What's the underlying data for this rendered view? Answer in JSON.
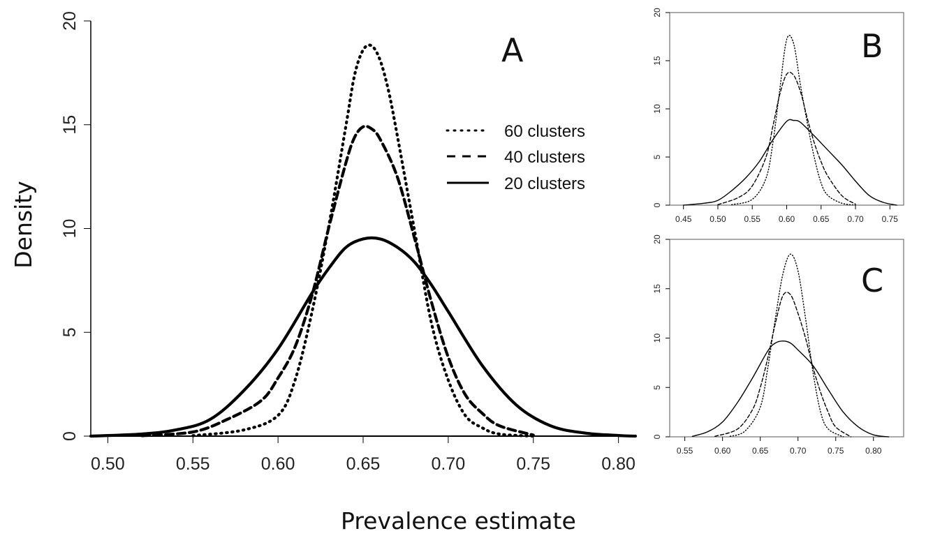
{
  "chart_data": [
    {
      "panel": "A",
      "type": "line",
      "xlabel": "Prevalence estimate",
      "ylabel": "Density",
      "xlim": [
        0.49,
        0.81
      ],
      "ylim": [
        0,
        20
      ],
      "xticks": [
        "0.50",
        "0.55",
        "0.60",
        "0.65",
        "0.70",
        "0.75",
        "0.80"
      ],
      "yticks": [
        "0",
        "5",
        "10",
        "15",
        "20"
      ],
      "legend": {
        "position": "top-right",
        "entries": [
          "60 clusters",
          "40 clusters",
          "20 clusters"
        ]
      },
      "series": [
        {
          "name": "60 clusters",
          "style": "dotted",
          "x": [
            0.55,
            0.58,
            0.6,
            0.61,
            0.62,
            0.63,
            0.64,
            0.645,
            0.65,
            0.655,
            0.66,
            0.665,
            0.67,
            0.68,
            0.69,
            0.7,
            0.71,
            0.72,
            0.73,
            0.75
          ],
          "y": [
            0.02,
            0.3,
            1.0,
            2.7,
            6.0,
            10.2,
            15.0,
            17.4,
            18.6,
            18.8,
            18.1,
            16.6,
            14.5,
            10.0,
            5.5,
            2.7,
            1.0,
            0.4,
            0.1,
            0.0
          ]
        },
        {
          "name": "40 clusters",
          "style": "dashed",
          "x": [
            0.52,
            0.55,
            0.57,
            0.59,
            0.6,
            0.61,
            0.62,
            0.63,
            0.64,
            0.645,
            0.65,
            0.655,
            0.66,
            0.67,
            0.68,
            0.69,
            0.7,
            0.71,
            0.72,
            0.73,
            0.75
          ],
          "y": [
            0.02,
            0.2,
            0.8,
            1.7,
            2.8,
            4.3,
            6.8,
            10.1,
            13.2,
            14.4,
            14.9,
            14.8,
            14.3,
            12.5,
            9.6,
            6.5,
            3.8,
            2.0,
            1.1,
            0.5,
            0.05
          ]
        },
        {
          "name": "20 clusters",
          "style": "solid",
          "x": [
            0.49,
            0.52,
            0.54,
            0.56,
            0.58,
            0.6,
            0.62,
            0.63,
            0.64,
            0.65,
            0.66,
            0.67,
            0.68,
            0.69,
            0.7,
            0.72,
            0.74,
            0.76,
            0.78,
            0.8,
            0.81
          ],
          "y": [
            0.0,
            0.1,
            0.3,
            0.8,
            2.2,
            4.2,
            6.9,
            8.1,
            9.1,
            9.5,
            9.5,
            9.1,
            8.4,
            7.3,
            6.0,
            3.4,
            1.5,
            0.5,
            0.15,
            0.03,
            0.0
          ]
        }
      ]
    },
    {
      "panel": "B",
      "type": "line",
      "xlim": [
        0.43,
        0.77
      ],
      "ylim": [
        0,
        20
      ],
      "xticks": [
        "0.45",
        "0.50",
        "0.55",
        "0.60",
        "0.65",
        "0.70",
        "0.75"
      ],
      "yticks": [
        "0",
        "5",
        "10",
        "15",
        "20"
      ],
      "series": [
        {
          "name": "60 clusters",
          "style": "dotted",
          "x": [
            0.52,
            0.55,
            0.57,
            0.58,
            0.59,
            0.6,
            0.61,
            0.62,
            0.63,
            0.64,
            0.65,
            0.66,
            0.68,
            0.7
          ],
          "y": [
            0.05,
            0.6,
            2.8,
            6.5,
            12.0,
            17.2,
            16.8,
            12.5,
            8.5,
            5.0,
            2.3,
            1.0,
            0.2,
            0.0
          ]
        },
        {
          "name": "40 clusters",
          "style": "dashed",
          "x": [
            0.5,
            0.53,
            0.55,
            0.57,
            0.58,
            0.59,
            0.6,
            0.61,
            0.62,
            0.63,
            0.64,
            0.65,
            0.66,
            0.68,
            0.7
          ],
          "y": [
            0.05,
            0.8,
            2.0,
            5.0,
            8.2,
            11.5,
            13.6,
            13.5,
            11.8,
            9.0,
            6.5,
            4.5,
            3.0,
            1.0,
            0.1
          ]
        },
        {
          "name": "20 clusters",
          "style": "solid",
          "x": [
            0.45,
            0.48,
            0.5,
            0.52,
            0.54,
            0.56,
            0.58,
            0.6,
            0.61,
            0.62,
            0.64,
            0.66,
            0.68,
            0.7,
            0.72,
            0.74,
            0.76
          ],
          "y": [
            0.0,
            0.2,
            0.5,
            1.5,
            2.8,
            4.5,
            6.8,
            8.7,
            8.8,
            8.6,
            7.2,
            5.7,
            4.2,
            2.5,
            1.0,
            0.3,
            0.0
          ]
        }
      ]
    },
    {
      "panel": "C",
      "type": "line",
      "xlim": [
        0.53,
        0.84
      ],
      "ylim": [
        0,
        20
      ],
      "xticks": [
        "0.55",
        "0.60",
        "0.65",
        "0.70",
        "0.75",
        "0.80"
      ],
      "yticks": [
        "0",
        "5",
        "10",
        "15",
        "20"
      ],
      "series": [
        {
          "name": "60 clusters",
          "style": "dotted",
          "x": [
            0.61,
            0.63,
            0.65,
            0.66,
            0.67,
            0.68,
            0.69,
            0.7,
            0.71,
            0.72,
            0.73,
            0.74,
            0.76
          ],
          "y": [
            0.05,
            0.6,
            3.0,
            7.0,
            12.0,
            16.5,
            18.5,
            16.8,
            12.0,
            6.5,
            2.5,
            0.8,
            0.0
          ]
        },
        {
          "name": "40 clusters",
          "style": "dashed",
          "x": [
            0.59,
            0.62,
            0.64,
            0.65,
            0.66,
            0.67,
            0.68,
            0.69,
            0.7,
            0.71,
            0.72,
            0.73,
            0.74,
            0.75,
            0.77
          ],
          "y": [
            0.05,
            0.8,
            2.8,
            5.0,
            8.0,
            11.5,
            14.3,
            14.4,
            12.5,
            10.0,
            7.0,
            4.5,
            2.5,
            1.0,
            0.0
          ]
        },
        {
          "name": "20 clusters",
          "style": "solid",
          "x": [
            0.56,
            0.58,
            0.6,
            0.62,
            0.64,
            0.66,
            0.67,
            0.68,
            0.69,
            0.7,
            0.72,
            0.74,
            0.76,
            0.78,
            0.8,
            0.82
          ],
          "y": [
            0.05,
            0.5,
            1.5,
            3.5,
            6.0,
            8.7,
            9.5,
            9.7,
            9.5,
            8.8,
            7.2,
            4.8,
            2.5,
            1.0,
            0.2,
            0.0
          ]
        }
      ]
    }
  ]
}
